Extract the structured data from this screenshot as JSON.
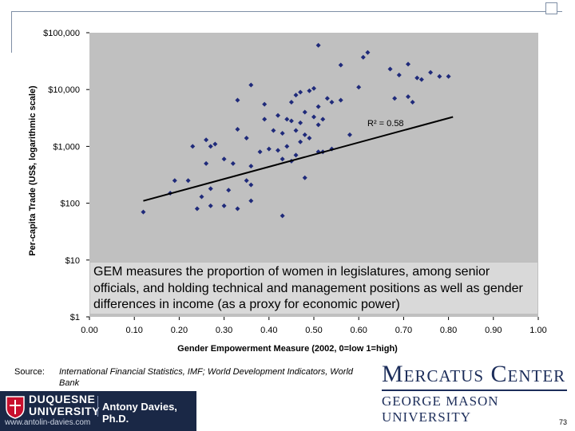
{
  "chart_data": {
    "type": "scatter",
    "xlabel": "Gender Empowerment Measure (2002, 0=low 1=high)",
    "ylabel": "Per-capita Trade (US$, logarithmic scale)",
    "x_ticks": [
      "0.00",
      "0.10",
      "0.20",
      "0.30",
      "0.40",
      "0.50",
      "0.60",
      "0.70",
      "0.80",
      "0.90",
      "1.00"
    ],
    "y_ticks": [
      "$1",
      "$10",
      "$100",
      "$1,000",
      "$10,000",
      "$100,000"
    ],
    "xlim": [
      0,
      1
    ],
    "ylim": [
      1,
      100000
    ],
    "y_scale": "log",
    "grid": false,
    "plot_background": "#c0c0c0",
    "point_color": "#1f2a7a",
    "trendline": {
      "x": [
        0.12,
        0.81
      ],
      "y": [
        110,
        3300
      ],
      "color": "#000000"
    },
    "annotation": "R² = 0.58",
    "points": [
      {
        "x": 0.51,
        "y": 60000
      },
      {
        "x": 0.62,
        "y": 45000
      },
      {
        "x": 0.61,
        "y": 37000
      },
      {
        "x": 0.56,
        "y": 27000
      },
      {
        "x": 0.71,
        "y": 28000
      },
      {
        "x": 0.67,
        "y": 23000
      },
      {
        "x": 0.69,
        "y": 18000
      },
      {
        "x": 0.76,
        "y": 20000
      },
      {
        "x": 0.78,
        "y": 17000
      },
      {
        "x": 0.8,
        "y": 17000
      },
      {
        "x": 0.73,
        "y": 16000
      },
      {
        "x": 0.74,
        "y": 15000
      },
      {
        "x": 0.36,
        "y": 12000
      },
      {
        "x": 0.5,
        "y": 10500
      },
      {
        "x": 0.49,
        "y": 9500
      },
      {
        "x": 0.47,
        "y": 9000
      },
      {
        "x": 0.6,
        "y": 11000
      },
      {
        "x": 0.71,
        "y": 7500
      },
      {
        "x": 0.72,
        "y": 6000
      },
      {
        "x": 0.68,
        "y": 7000
      },
      {
        "x": 0.56,
        "y": 6500
      },
      {
        "x": 0.54,
        "y": 6000
      },
      {
        "x": 0.53,
        "y": 7000
      },
      {
        "x": 0.45,
        "y": 6000
      },
      {
        "x": 0.46,
        "y": 8000
      },
      {
        "x": 0.33,
        "y": 6500
      },
      {
        "x": 0.39,
        "y": 5500
      },
      {
        "x": 0.51,
        "y": 5000
      },
      {
        "x": 0.48,
        "y": 4000
      },
      {
        "x": 0.42,
        "y": 3500
      },
      {
        "x": 0.44,
        "y": 3000
      },
      {
        "x": 0.45,
        "y": 2800
      },
      {
        "x": 0.5,
        "y": 3300
      },
      {
        "x": 0.52,
        "y": 3000
      },
      {
        "x": 0.51,
        "y": 2400
      },
      {
        "x": 0.47,
        "y": 2600
      },
      {
        "x": 0.39,
        "y": 3000
      },
      {
        "x": 0.41,
        "y": 1900
      },
      {
        "x": 0.43,
        "y": 1700
      },
      {
        "x": 0.46,
        "y": 1900
      },
      {
        "x": 0.33,
        "y": 2000
      },
      {
        "x": 0.35,
        "y": 1400
      },
      {
        "x": 0.48,
        "y": 1600
      },
      {
        "x": 0.49,
        "y": 1400
      },
      {
        "x": 0.47,
        "y": 1200
      },
      {
        "x": 0.58,
        "y": 1600
      },
      {
        "x": 0.26,
        "y": 1300
      },
      {
        "x": 0.27,
        "y": 1000
      },
      {
        "x": 0.23,
        "y": 1000
      },
      {
        "x": 0.28,
        "y": 1100
      },
      {
        "x": 0.38,
        "y": 800
      },
      {
        "x": 0.4,
        "y": 900
      },
      {
        "x": 0.42,
        "y": 850
      },
      {
        "x": 0.51,
        "y": 800
      },
      {
        "x": 0.52,
        "y": 800
      },
      {
        "x": 0.44,
        "y": 1000
      },
      {
        "x": 0.46,
        "y": 700
      },
      {
        "x": 0.45,
        "y": 550
      },
      {
        "x": 0.43,
        "y": 600
      },
      {
        "x": 0.3,
        "y": 600
      },
      {
        "x": 0.32,
        "y": 500
      },
      {
        "x": 0.36,
        "y": 450
      },
      {
        "x": 0.26,
        "y": 500
      },
      {
        "x": 0.19,
        "y": 250
      },
      {
        "x": 0.18,
        "y": 150
      },
      {
        "x": 0.22,
        "y": 250
      },
      {
        "x": 0.27,
        "y": 180
      },
      {
        "x": 0.31,
        "y": 170
      },
      {
        "x": 0.35,
        "y": 250
      },
      {
        "x": 0.36,
        "y": 110
      },
      {
        "x": 0.25,
        "y": 130
      },
      {
        "x": 0.24,
        "y": 80
      },
      {
        "x": 0.27,
        "y": 90
      },
      {
        "x": 0.33,
        "y": 80
      },
      {
        "x": 0.3,
        "y": 90
      },
      {
        "x": 0.12,
        "y": 70
      },
      {
        "x": 0.43,
        "y": 60
      },
      {
        "x": 0.48,
        "y": 280
      },
      {
        "x": 0.36,
        "y": 210
      },
      {
        "x": 0.54,
        "y": 900
      }
    ]
  },
  "overlay_text": "GEM measures the proportion of women in legislatures, among senior officials, and holding technical and management positions as well as gender differences in income (as a proxy for economic power)",
  "source": {
    "label": "Source:",
    "text": "International Financial Statistics, IMF; World Development Indicators, World Bank"
  },
  "logo": {
    "mercatus_line1": "Mercatus Center",
    "mercatus_line2": "GEORGE MASON UNIVERSITY"
  },
  "footer": {
    "duquesne": "DUQUESNE UNIVERSITY",
    "author": "Antony Davies, Ph.D.",
    "url": "www.antolin-davies.com"
  },
  "page_number": "73"
}
